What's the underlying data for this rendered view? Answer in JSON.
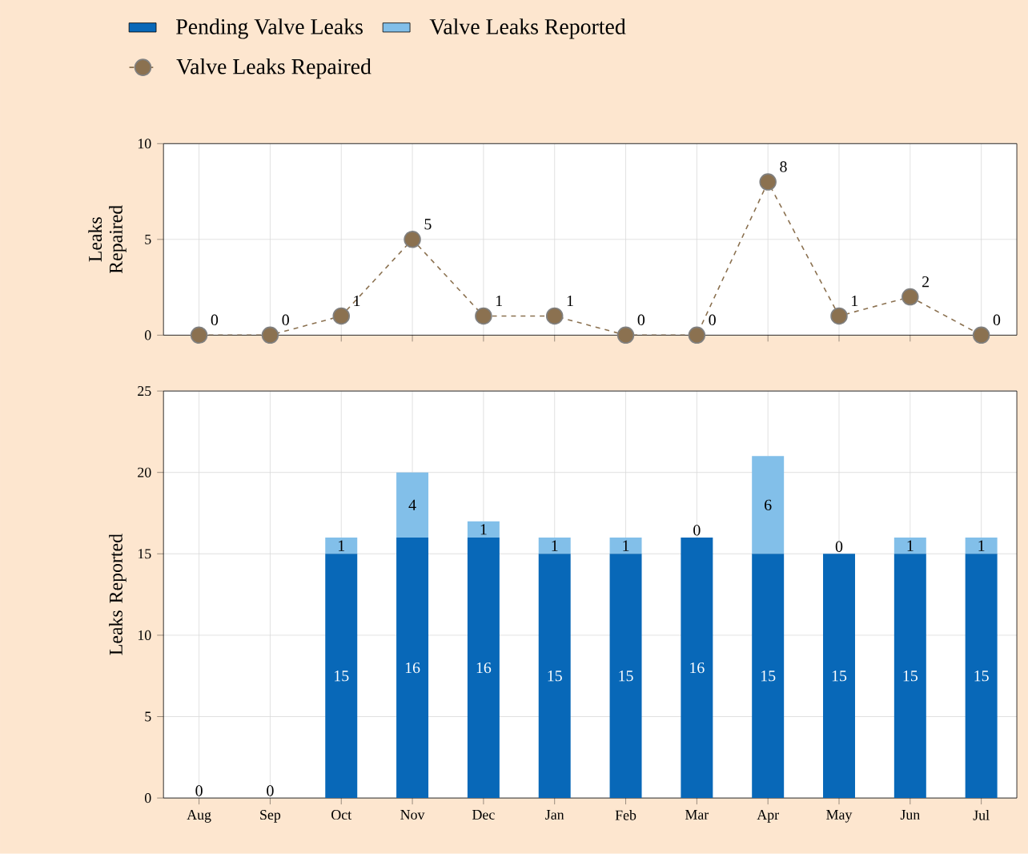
{
  "chart_data": [
    {
      "type": "line",
      "ylabel": "Leaks Repaired",
      "categories": [
        null,
        null,
        null,
        null,
        null,
        null,
        null,
        null,
        null,
        null,
        null,
        null
      ],
      "series": [
        {
          "name": "Valve Leaks Repaired",
          "color": "#8b7150",
          "values": [
            0,
            0,
            1,
            5,
            1,
            1,
            0,
            0,
            8,
            1,
            2,
            0
          ]
        }
      ],
      "ylim": [
        0,
        10
      ],
      "yticks": [
        0,
        5,
        10
      ],
      "grid": true,
      "legend": "top",
      "marker": "circle",
      "line_style": "dashed",
      "data_labels": true,
      "tick_labels": "y"
    },
    {
      "type": "bar",
      "stacked": true,
      "ylabel": "Leaks Reported",
      "categories": [
        "Aug",
        "Sep",
        "Oct",
        "Nov",
        "Dec",
        "Jan",
        "Feb",
        "Mar",
        "Apr",
        "May",
        "Jun",
        "Jul"
      ],
      "series": [
        {
          "name": "Pending Valve Leaks",
          "color": "#0868b8",
          "values": [
            0,
            0,
            15,
            16,
            16,
            15,
            15,
            16,
            15,
            15,
            15,
            15
          ],
          "value_labels": [
            null,
            null,
            "15",
            "16",
            "16",
            "15",
            "15",
            "16",
            "15",
            "15",
            "15",
            "15"
          ]
        },
        {
          "name": "Valve Leaks Reported",
          "color": "#82bfe9",
          "values": [
            0,
            0,
            1,
            4,
            1,
            1,
            1,
            0,
            6,
            0,
            1,
            1
          ],
          "value_labels": [
            "0",
            "0",
            "1",
            "4",
            "1",
            "1",
            "1",
            "0",
            "6",
            "0",
            "1",
            "1"
          ]
        }
      ],
      "ylim": [
        0,
        25
      ],
      "yticks": [
        0,
        5,
        10,
        15,
        20,
        25
      ],
      "grid": true,
      "legend": "top"
    }
  ]
}
